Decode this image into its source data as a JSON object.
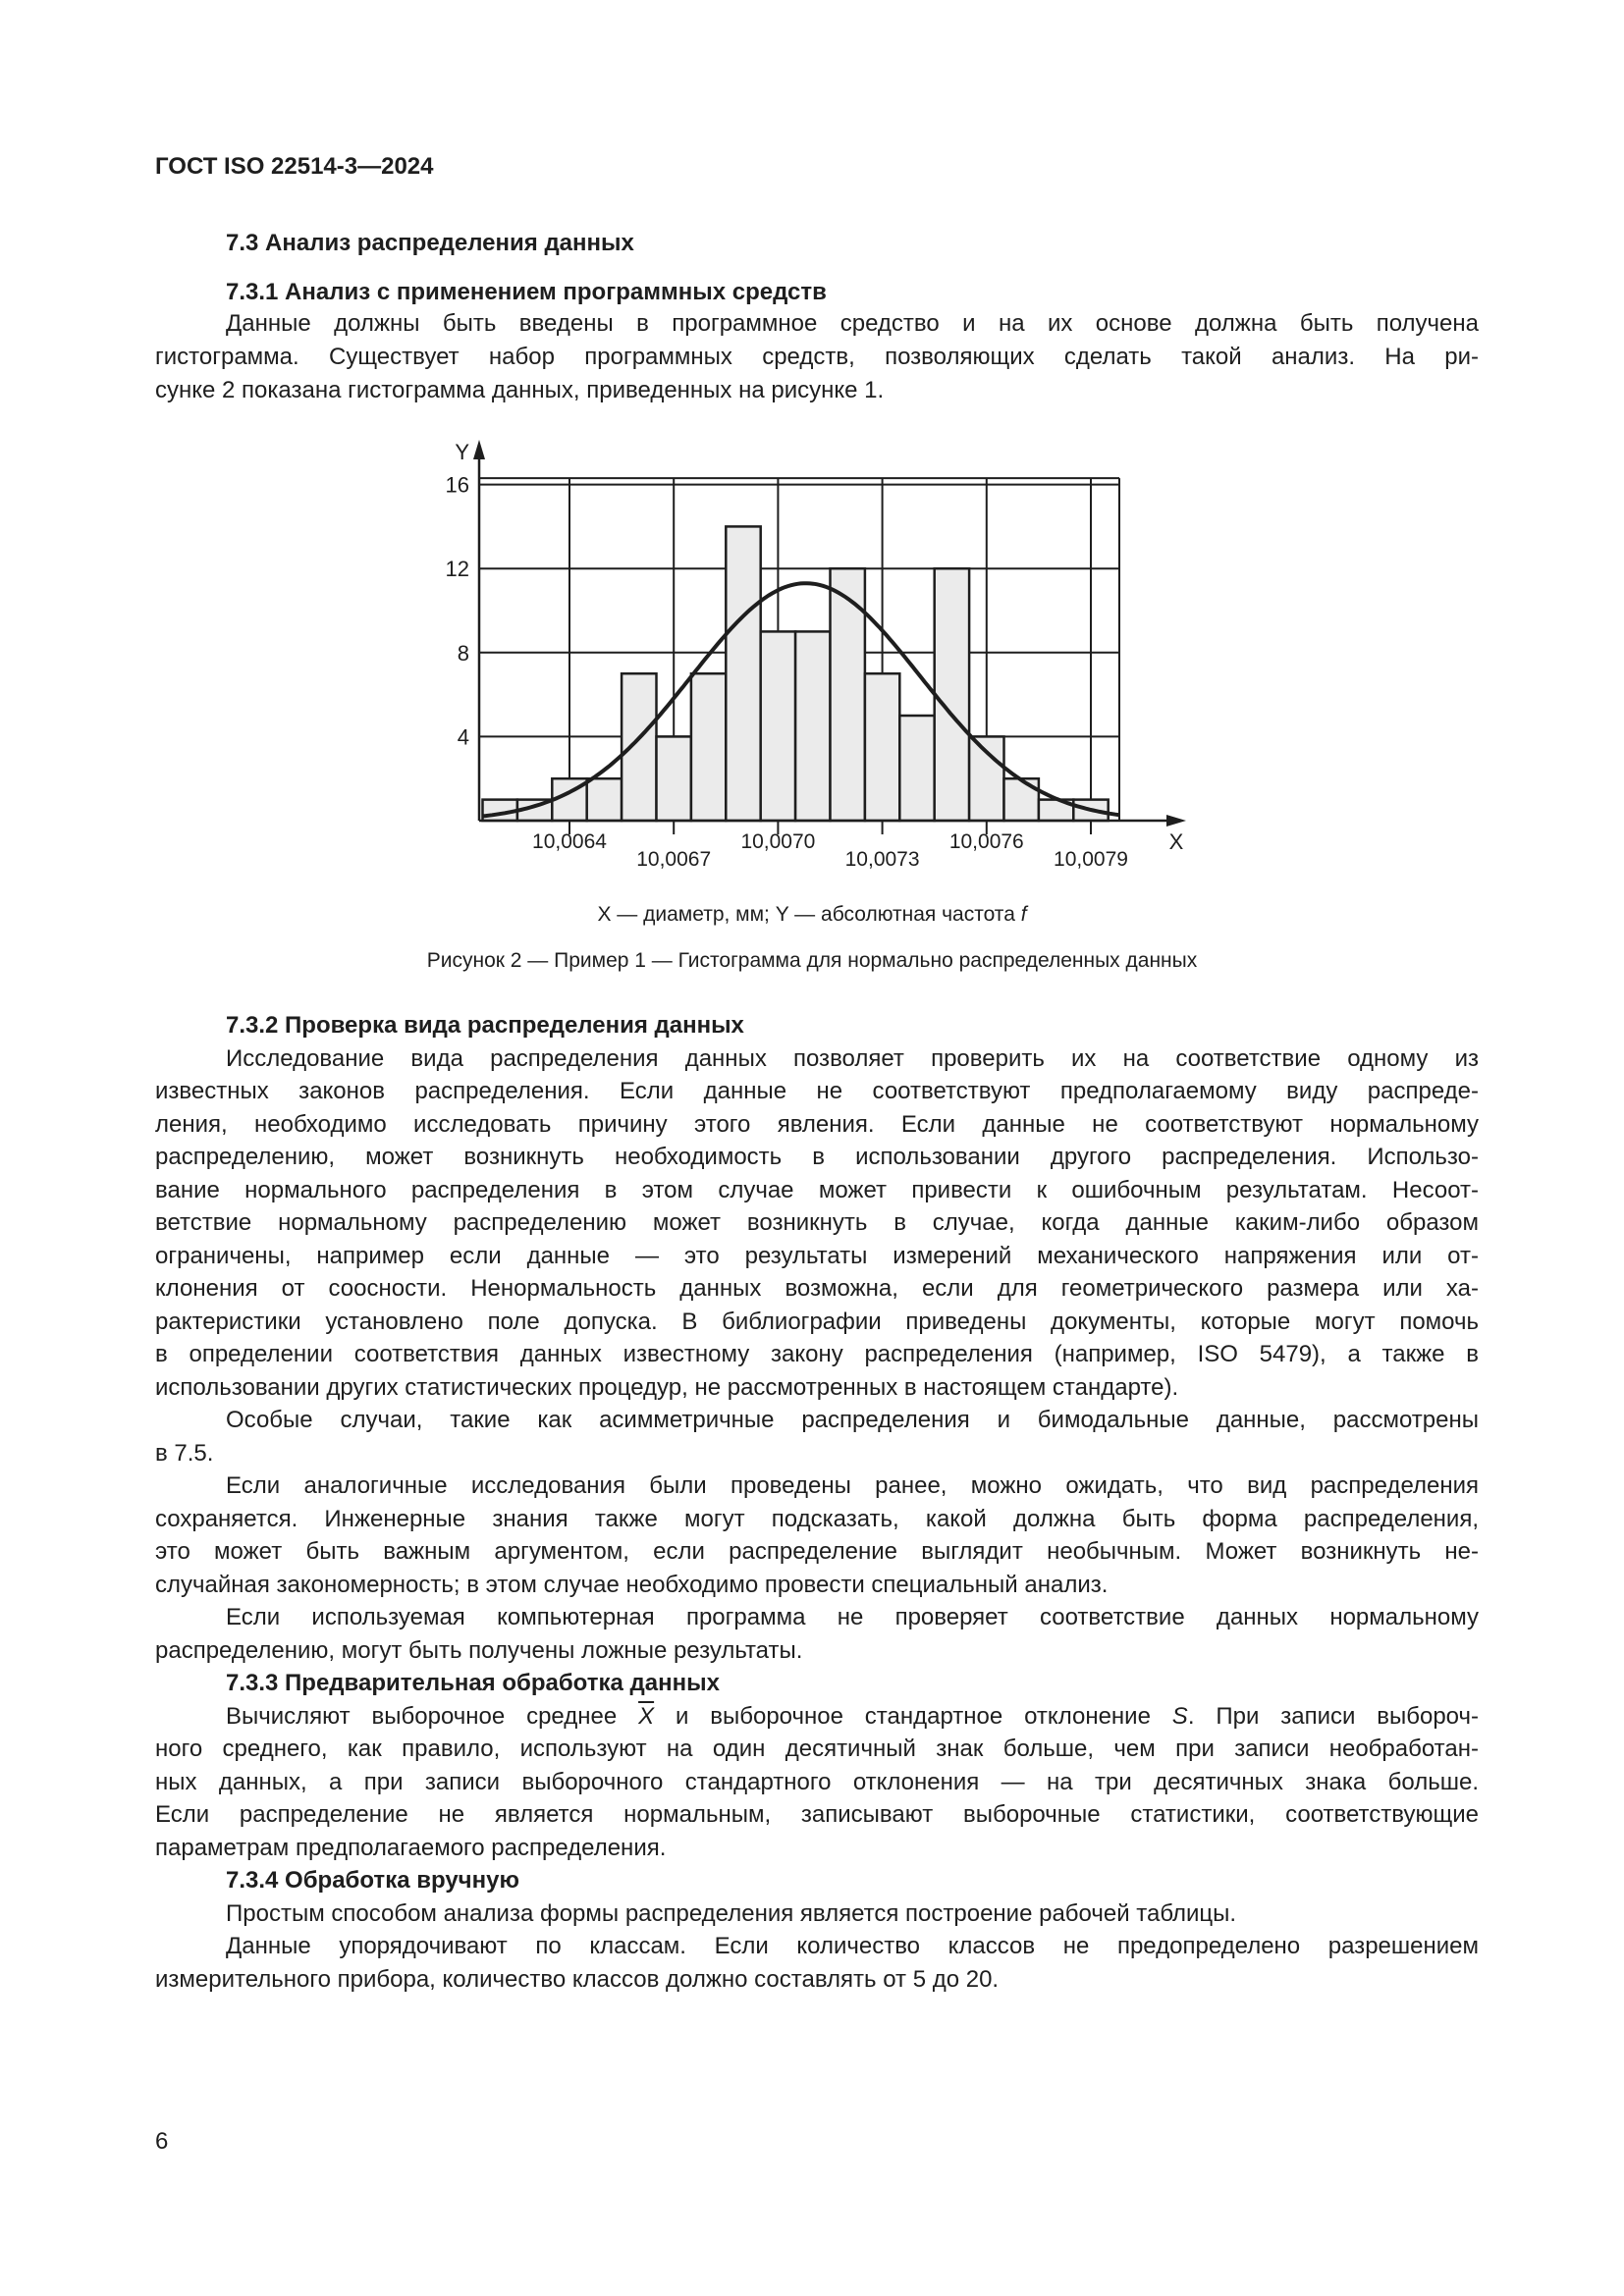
{
  "header": {
    "doc_code": "ГОСТ ISO 22514-3—2024"
  },
  "top": [
    {
      "type": "heading",
      "text": "7.3  Анализ распределения данных"
    },
    {
      "type": "heading",
      "text": "7.3.1  Анализ с применением программных средств"
    },
    {
      "type": "para",
      "lines": [
        "Данные должны быть введены в программное средство и на их основе должна быть получена",
        "гистограмма. Существует набор программных средств, позволяющих сделать такой анализ. На ри-",
        "сунке 2 показана гистограмма данных, приведенных на рисунке 1."
      ]
    }
  ],
  "figure": {
    "legend_text": "X — диаметр, мм; Y — абсолютная частота ",
    "legend_var": "f",
    "caption": "Рисунок 2 — Пример 1 — Гистограмма для нормально распределенных данных"
  },
  "chart_data": {
    "type": "bar",
    "title": "",
    "xlabel": "X",
    "ylabel": "Y",
    "bin_width": 0.0001,
    "bin_centers": [
      10.0062,
      10.0063,
      10.0064,
      10.0065,
      10.0066,
      10.0067,
      10.0068,
      10.0069,
      10.007,
      10.0071,
      10.0072,
      10.0073,
      10.0074,
      10.0075,
      10.0076,
      10.0077,
      10.0078,
      10.0079
    ],
    "values": [
      1,
      1,
      2,
      2,
      7,
      4,
      7,
      14,
      9,
      9,
      12,
      7,
      5,
      12,
      4,
      2,
      1,
      1
    ],
    "fitted_curve": {
      "type": "normal",
      "mean": 10.00708,
      "sigma": 0.00033,
      "peak": 11.3
    },
    "xticks": [
      "10,0064",
      "10,0067",
      "10,0070",
      "10,0073",
      "10,0076",
      "10,0079"
    ],
    "xtick_values": [
      10.0064,
      10.0067,
      10.007,
      10.0073,
      10.0076,
      10.0079
    ],
    "yticks": [
      "4",
      "8",
      "12",
      "16"
    ],
    "ytick_values": [
      4,
      8,
      12,
      16
    ],
    "xlim": [
      10.00615,
      10.00798
    ],
    "ylim": [
      0,
      16.3
    ],
    "grid": true,
    "colors": {
      "bar_fill": "#ebebeb",
      "stroke": "#1e1e1e"
    }
  },
  "body": [
    {
      "type": "heading",
      "text": "7.3.2  Проверка вида распределения данных"
    },
    {
      "type": "para",
      "lines": [
        "Исследование вида распределения данных позволяет проверить их на соответствие одному из",
        "известных законов распределения. Если данные не соответствуют предполагаемому виду распреде-",
        "ления, необходимо исследовать причину этого явления. Если данные не соответствуют нормальному",
        "распределению, может возникнуть необходимость в использовании другого распределения. Использо-",
        "вание нормального распределения в этом случае может привести к ошибочным результатам. Несоот-",
        "ветствие нормальному распределению может возникнуть в случае, когда данные каким-либо образом",
        "ограничены, например если данные — это результаты измерений механического напряжения или от-",
        "клонения от соосности. Ненормальность данных возможна, если для геометрического размера или ха-",
        "рактеристики установлено поле допуска. В библиографии приведены документы, которые могут помочь",
        "в определении соответствия данных известному закону распределения (например, ISO 5479), а также в",
        "использовании других статистических процедур, не рассмотренных в настоящем стандарте)."
      ]
    },
    {
      "type": "para",
      "lines": [
        "Особые случаи, такие как асимметричные распределения и бимодальные данные, рассмотрены",
        "в 7.5."
      ]
    },
    {
      "type": "para",
      "lines": [
        "Если аналогичные исследования были проведены ранее, можно ожидать, что вид распределения",
        "сохраняется. Инженерные знания также могут подсказать, какой должна быть форма распределения,",
        "это может быть важным аргументом, если распределение выглядит необычным. Может возникнуть не-",
        "случайная закономерность; в этом случае необходимо провести специальный анализ."
      ]
    },
    {
      "type": "para",
      "lines": [
        "Если используемая компьютерная программа не проверяет соответствие данных нормальному",
        "распределению, могут быть получены ложные результаты."
      ]
    },
    {
      "type": "heading",
      "text": "7.3.3  Предварительная обработка данных"
    },
    {
      "type": "para",
      "lines": [
        {
          "parts": [
            {
              "text": "Вычисляют выборочное среднее "
            },
            {
              "text": "X",
              "style": "ov"
            },
            {
              "text": " и выборочное стандартное отклонение "
            },
            {
              "text": "S",
              "style": "it"
            },
            {
              "text": ". При записи выбороч-"
            }
          ]
        },
        "ного среднего, как правило, используют на один десятичный знак больше, чем при записи необработан-",
        "ных данных, а при записи выборочного стандартного отклонения — на три десятичных знака больше.",
        "Если распределение не является нормальным, записывают выборочные статистики, соответствующие",
        "параметрам предполагаемого распределения."
      ]
    },
    {
      "type": "heading",
      "text": "7.3.4  Обработка вручную"
    },
    {
      "type": "para",
      "lines": [
        "Простым способом анализа формы распределения является построение рабочей таблицы."
      ]
    },
    {
      "type": "para",
      "lines": [
        "Данные упорядочивают по классам. Если количество классов не предопределено разрешением",
        "измерительного прибора, количество классов должно составлять от 5 до 20."
      ]
    }
  ],
  "footer": {
    "page_number": "6"
  }
}
